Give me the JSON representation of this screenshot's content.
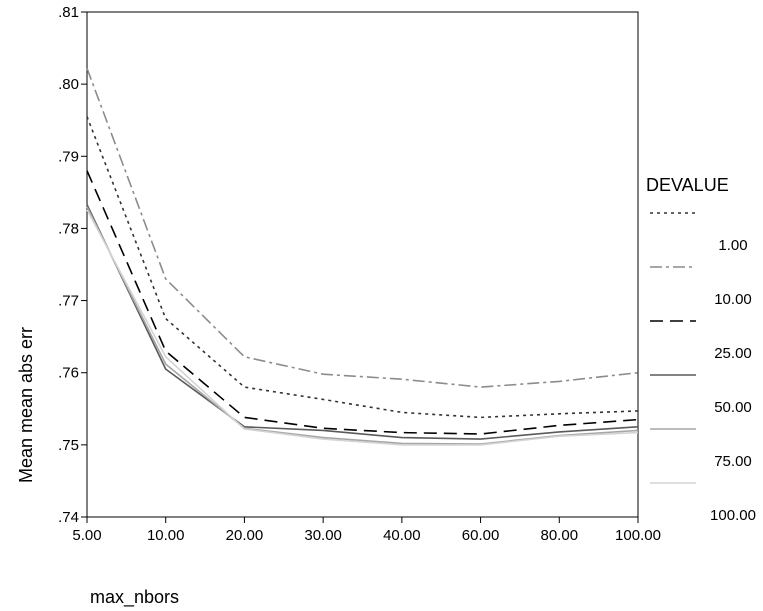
{
  "chart_data": {
    "type": "line",
    "xlabel": "max_nbors",
    "ylabel": "Mean mean abs err",
    "x": [
      "5.00",
      "10.00",
      "20.00",
      "30.00",
      "40.00",
      "60.00",
      "80.00",
      "100.00"
    ],
    "y_ticks": [
      ".74",
      ".75",
      ".76",
      ".77",
      ".78",
      ".79",
      ".80",
      ".81"
    ],
    "ylim": [
      0.74,
      0.81
    ],
    "grid": false,
    "legend": {
      "title": "DEVALUE",
      "position": "right"
    },
    "series": [
      {
        "name": "1.00",
        "color": "#333333",
        "dash": "3,4",
        "values": [
          0.7955,
          0.7675,
          0.758,
          0.7563,
          0.7545,
          0.7538,
          0.7543,
          0.7547
        ]
      },
      {
        "name": "10.00",
        "color": "#8c8c8c",
        "dash": "12,4,3,4",
        "values": [
          0.8022,
          0.773,
          0.7622,
          0.7598,
          0.7591,
          0.758,
          0.7588,
          0.76
        ]
      },
      {
        "name": "25.00",
        "color": "#000000",
        "dash": "13,7",
        "values": [
          0.788,
          0.763,
          0.7538,
          0.7523,
          0.7517,
          0.7515,
          0.7527,
          0.7535
        ]
      },
      {
        "name": "50.00",
        "color": "#5a5a5a",
        "dash": "",
        "values": [
          0.7833,
          0.7605,
          0.7525,
          0.752,
          0.751,
          0.7508,
          0.7518,
          0.7525
        ]
      },
      {
        "name": "75.00",
        "color": "#a6a6a6",
        "dash": "",
        "values": [
          0.783,
          0.7612,
          0.7523,
          0.751,
          0.7502,
          0.7501,
          0.7513,
          0.752
        ]
      },
      {
        "name": "100.00",
        "color": "#d4d4d4",
        "dash": "",
        "values": [
          0.7826,
          0.7622,
          0.7522,
          0.7508,
          0.75,
          0.75,
          0.7512,
          0.7517
        ]
      }
    ]
  }
}
